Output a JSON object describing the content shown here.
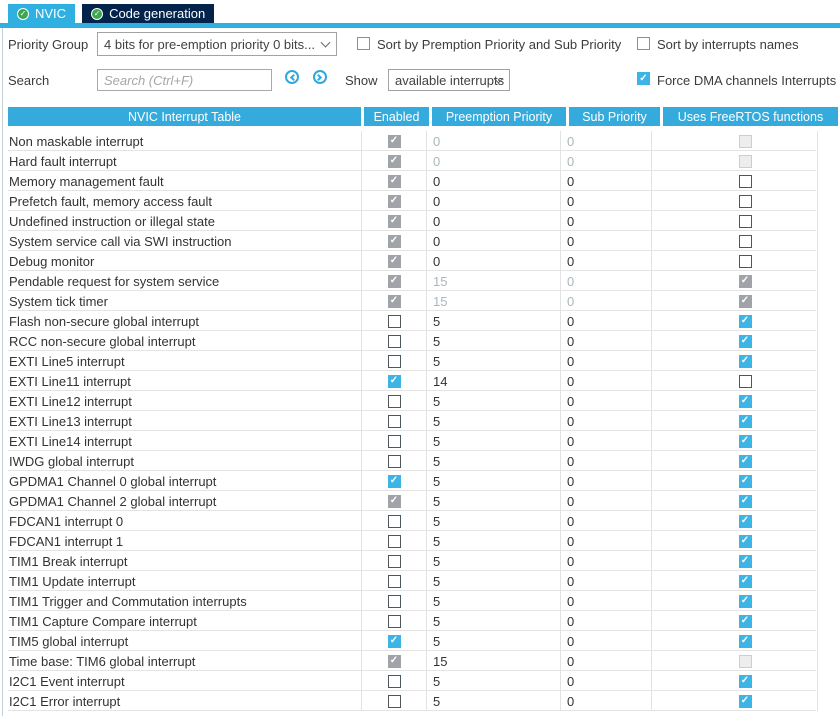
{
  "tabs": [
    {
      "label": "NVIC",
      "icon": "check-circle",
      "active": true
    },
    {
      "label": "Code generation",
      "icon": "check-circle",
      "active": false
    }
  ],
  "controls": {
    "priority_group": {
      "label": "Priority Group",
      "value": "4 bits for pre-emption priority 0 bits..."
    },
    "sort_priority": {
      "label": "Sort by Premption Priority and Sub Priority",
      "checked": false
    },
    "sort_names": {
      "label": "Sort by interrupts names",
      "checked": false
    },
    "search": {
      "label": "Search",
      "placeholder": "Search (Ctrl+F)",
      "value": ""
    },
    "show": {
      "label": "Show",
      "value": "available interrupts"
    },
    "force_dma": {
      "label": "Force DMA channels Interrupts",
      "checked": true
    }
  },
  "colors": {
    "accent": "#3cb4e6",
    "tab_dark": "#03234b",
    "green_check": "#3da64f",
    "header_cyan": "#35abdd"
  },
  "icons": [
    "check-circle-icon",
    "chevron-down-icon",
    "circle-arrow-left-icon",
    "circle-arrow-right-icon",
    "checkmark-icon"
  ],
  "table": {
    "columns": [
      "NVIC Interrupt Table",
      "Enabled",
      "Preemption Priority",
      "Sub Priority",
      "Uses FreeRTOS functions"
    ],
    "rows": [
      {
        "name": "Non maskable interrupt",
        "enabled": "on-dis",
        "preemption": "0",
        "sub": "0",
        "values_dim": true,
        "freertos": "off-dis"
      },
      {
        "name": "Hard fault interrupt",
        "enabled": "on-dis",
        "preemption": "0",
        "sub": "0",
        "values_dim": true,
        "freertos": "off-dis"
      },
      {
        "name": "Memory management fault",
        "enabled": "on-dis",
        "preemption": "0",
        "sub": "0",
        "values_dim": false,
        "freertos": "off"
      },
      {
        "name": "Prefetch fault, memory access fault",
        "enabled": "on-dis",
        "preemption": "0",
        "sub": "0",
        "values_dim": false,
        "freertos": "off"
      },
      {
        "name": "Undefined instruction or illegal state",
        "enabled": "on-dis",
        "preemption": "0",
        "sub": "0",
        "values_dim": false,
        "freertos": "off"
      },
      {
        "name": "System service call via SWI instruction",
        "enabled": "on-dis",
        "preemption": "0",
        "sub": "0",
        "values_dim": false,
        "freertos": "off"
      },
      {
        "name": "Debug monitor",
        "enabled": "on-dis",
        "preemption": "0",
        "sub": "0",
        "values_dim": false,
        "freertos": "off"
      },
      {
        "name": "Pendable request for system service",
        "enabled": "on-dis",
        "preemption": "15",
        "sub": "0",
        "values_dim": true,
        "freertos": "on-dis"
      },
      {
        "name": "System tick timer",
        "enabled": "on-dis",
        "preemption": "15",
        "sub": "0",
        "values_dim": true,
        "freertos": "on-dis"
      },
      {
        "name": "Flash non-secure global interrupt",
        "enabled": "off",
        "preemption": "5",
        "sub": "0",
        "values_dim": false,
        "freertos": "on"
      },
      {
        "name": "RCC non-secure global interrupt",
        "enabled": "off",
        "preemption": "5",
        "sub": "0",
        "values_dim": false,
        "freertos": "on"
      },
      {
        "name": "EXTI Line5 interrupt",
        "enabled": "off",
        "preemption": "5",
        "sub": "0",
        "values_dim": false,
        "freertos": "on"
      },
      {
        "name": "EXTI Line11 interrupt",
        "enabled": "on",
        "preemption": "14",
        "sub": "0",
        "values_dim": false,
        "freertos": "off"
      },
      {
        "name": "EXTI Line12 interrupt",
        "enabled": "off",
        "preemption": "5",
        "sub": "0",
        "values_dim": false,
        "freertos": "on"
      },
      {
        "name": "EXTI Line13 interrupt",
        "enabled": "off",
        "preemption": "5",
        "sub": "0",
        "values_dim": false,
        "freertos": "on"
      },
      {
        "name": "EXTI Line14 interrupt",
        "enabled": "off",
        "preemption": "5",
        "sub": "0",
        "values_dim": false,
        "freertos": "on"
      },
      {
        "name": "IWDG global interrupt",
        "enabled": "off",
        "preemption": "5",
        "sub": "0",
        "values_dim": false,
        "freertos": "on"
      },
      {
        "name": "GPDMA1 Channel 0 global interrupt",
        "enabled": "on",
        "preemption": "5",
        "sub": "0",
        "values_dim": false,
        "freertos": "on"
      },
      {
        "name": "GPDMA1 Channel 2 global interrupt",
        "enabled": "on-dis",
        "preemption": "5",
        "sub": "0",
        "values_dim": false,
        "freertos": "on"
      },
      {
        "name": "FDCAN1 interrupt 0",
        "enabled": "off",
        "preemption": "5",
        "sub": "0",
        "values_dim": false,
        "freertos": "on"
      },
      {
        "name": "FDCAN1 interrupt 1",
        "enabled": "off",
        "preemption": "5",
        "sub": "0",
        "values_dim": false,
        "freertos": "on"
      },
      {
        "name": "TIM1 Break interrupt",
        "enabled": "off",
        "preemption": "5",
        "sub": "0",
        "values_dim": false,
        "freertos": "on"
      },
      {
        "name": "TIM1 Update interrupt",
        "enabled": "off",
        "preemption": "5",
        "sub": "0",
        "values_dim": false,
        "freertos": "on"
      },
      {
        "name": "TIM1 Trigger and Commutation interrupts",
        "enabled": "off",
        "preemption": "5",
        "sub": "0",
        "values_dim": false,
        "freertos": "on"
      },
      {
        "name": "TIM1 Capture Compare interrupt",
        "enabled": "off",
        "preemption": "5",
        "sub": "0",
        "values_dim": false,
        "freertos": "on"
      },
      {
        "name": "TIM5 global interrupt",
        "enabled": "on",
        "preemption": "5",
        "sub": "0",
        "values_dim": false,
        "freertos": "on"
      },
      {
        "name": "Time base: TIM6 global interrupt",
        "enabled": "on-dis",
        "preemption": "15",
        "sub": "0",
        "values_dim": false,
        "freertos": "off-dis"
      },
      {
        "name": "I2C1 Event interrupt",
        "enabled": "off",
        "preemption": "5",
        "sub": "0",
        "values_dim": false,
        "freertos": "on"
      },
      {
        "name": "I2C1 Error interrupt",
        "enabled": "off",
        "preemption": "5",
        "sub": "0",
        "values_dim": false,
        "freertos": "on"
      }
    ]
  }
}
